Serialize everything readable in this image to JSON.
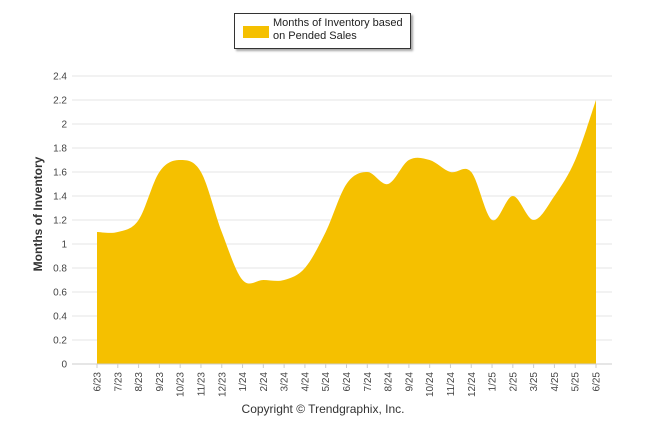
{
  "legend": {
    "label": "Months of Inventory based on Pended Sales"
  },
  "footer": {
    "copyright": "Copyright © Trendgraphix, Inc."
  },
  "colors": {
    "area_fill": "#f5c000",
    "grid": "#e6e6e6",
    "axis": "#cccccc"
  },
  "chart_data": {
    "type": "area",
    "title": "",
    "xlabel": "",
    "ylabel": "Months of Inventory",
    "ylim": [
      0,
      2.4
    ],
    "yticks": [
      0,
      0.2,
      0.4,
      0.6,
      0.8,
      1,
      1.2,
      1.4,
      1.6,
      1.8,
      2,
      2.2,
      2.4
    ],
    "grid": true,
    "legend_position": "top-center",
    "categories": [
      "6/23",
      "7/23",
      "8/23",
      "9/23",
      "10/23",
      "11/23",
      "12/23",
      "1/24",
      "2/24",
      "3/24",
      "4/24",
      "5/24",
      "6/24",
      "7/24",
      "8/24",
      "9/24",
      "10/24",
      "11/24",
      "12/24",
      "1/25",
      "2/25",
      "3/25",
      "4/25",
      "5/25",
      "6/25"
    ],
    "series": [
      {
        "name": "Months of Inventory based on Pended Sales",
        "values": [
          1.1,
          1.1,
          1.2,
          1.6,
          1.7,
          1.6,
          1.1,
          0.7,
          0.7,
          0.7,
          0.8,
          1.1,
          1.5,
          1.6,
          1.5,
          1.7,
          1.7,
          1.6,
          1.6,
          1.2,
          1.4,
          1.2,
          1.4,
          1.7,
          2.2
        ]
      }
    ]
  }
}
